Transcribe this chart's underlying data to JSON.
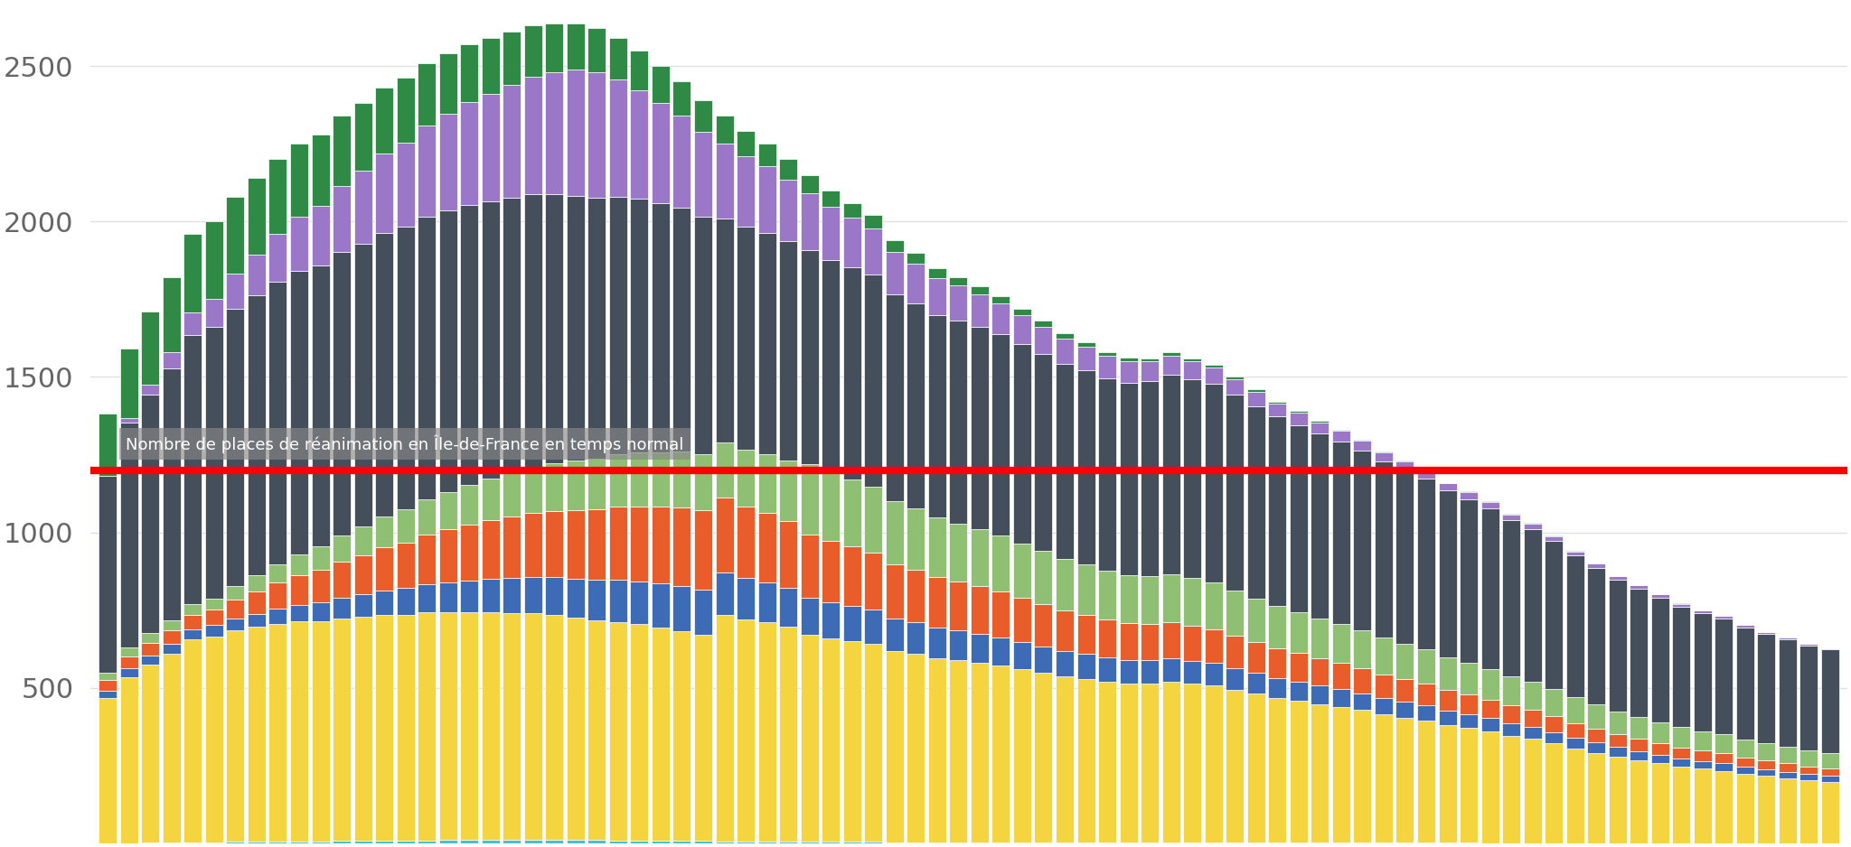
{
  "annotation": "Nombre de places de réanimation en Île-de-France en temps normal",
  "red_line_y": 1200,
  "ylim": [
    0,
    2700
  ],
  "yticks": [
    500,
    1000,
    1500,
    2000,
    2500
  ],
  "colors": {
    "teal": "#4DBECC",
    "yellow": "#F5D53F",
    "blue": "#3D6BB5",
    "orange": "#E85D2A",
    "light_green": "#8FBF72",
    "dark_gray": "#454F5B",
    "purple": "#9B77C8",
    "dark_green": "#2E8A45"
  },
  "background": "#ffffff",
  "grid_color": "#e0e0e0",
  "bar_width": 0.85,
  "totals": [
    1380,
    1590,
    1710,
    1820,
    1960,
    2000,
    2080,
    2140,
    2200,
    2250,
    2280,
    2340,
    2380,
    2430,
    2460,
    2510,
    2540,
    2570,
    2590,
    2610,
    2630,
    2640,
    2640,
    2620,
    2590,
    2550,
    2500,
    2450,
    2390,
    2340,
    2290,
    2250,
    2200,
    2150,
    2100,
    2060,
    2020,
    1940,
    1900,
    1850,
    1820,
    1790,
    1760,
    1720,
    1680,
    1640,
    1610,
    1580,
    1560,
    1560,
    1580,
    1560,
    1540,
    1500,
    1460,
    1420,
    1390,
    1360,
    1330,
    1300,
    1260,
    1230,
    1200,
    1160,
    1130,
    1100,
    1060,
    1030,
    990,
    940,
    900,
    860,
    830,
    800,
    770,
    750,
    730,
    700,
    680,
    660,
    640,
    630
  ],
  "fracs": {
    "teal": 0.005,
    "yellow": 0.3,
    "blue": 0.085,
    "orange": 0.14,
    "light_green": 0.11,
    "dark_gray": 0.28,
    "purple": 0.055,
    "dark_green": 0.025
  }
}
